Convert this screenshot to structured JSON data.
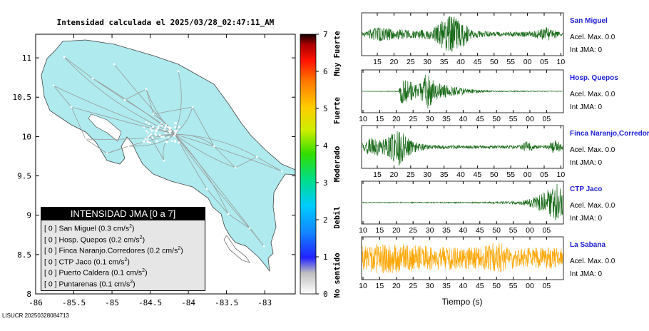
{
  "map": {
    "title": "Intensidad calculada el 2025/03/28_02:47:11_AM",
    "x_ticks": [
      "-86",
      "-85.5",
      "-85",
      "-84.5",
      "-84",
      "-83.5",
      "-83"
    ],
    "y_ticks": [
      "11",
      "10.5",
      "10",
      "9.5",
      "9",
      "8.5",
      "8"
    ],
    "x_tick_values": [
      -86,
      -85.5,
      -85,
      -84.5,
      -84,
      -83.5,
      -83
    ],
    "y_tick_values": [
      11,
      10.5,
      10,
      9.5,
      9,
      8.5,
      8
    ],
    "xlim": [
      -86,
      -82.6
    ],
    "ylim": [
      8,
      11.3
    ],
    "land_color": "#aeeaee",
    "road_color": "#9b9b9b"
  },
  "colorbar": {
    "ticks": [
      "0",
      "1",
      "2",
      "3",
      "4",
      "5",
      "6",
      "7"
    ],
    "labels": [
      "No sentido",
      "Debil",
      "Moderado",
      "Fuerte",
      "Muy Fuerte"
    ]
  },
  "legend": {
    "title": "INTENSIDAD JMA [0 a 7]",
    "rows": [
      {
        "bracket": "[ 0 ]",
        "name": "San Miguel",
        "value": "(0.3 cm/s",
        "exp": "2",
        "close": ")"
      },
      {
        "bracket": "[ 0 ]",
        "name": "Hosp. Quepos",
        "value": "(0.2 cm/s",
        "exp": "2",
        "close": ")"
      },
      {
        "bracket": "[ 0 ]",
        "name": "Finca Naranjo.Corredores",
        "value": "(0.2 cm/s",
        "exp": "2",
        "close": ")"
      },
      {
        "bracket": "[ 0 ]",
        "name": "CTP Jaco",
        "value": "(0.1 cm/s",
        "exp": "2",
        "close": ")"
      },
      {
        "bracket": "[ 0 ]",
        "name": "Puerto Caldera",
        "value": "(0.1 cm/s",
        "exp": "2",
        "close": ")"
      },
      {
        "bracket": "[ 0 ]",
        "name": "Puntarenas",
        "value": "(0.1 cm/s",
        "exp": "2",
        "close": ")"
      }
    ]
  },
  "footer_id": "LISUCR 20250328084713",
  "chart_data": [
    {
      "type": "line",
      "title": "Intensidad calculada el 2025/03/28_02:47:11_AM",
      "xlim": [
        -86,
        -82.6
      ],
      "ylim": [
        8,
        11.3
      ],
      "notes": "Map of Costa Rica with road network"
    },
    {
      "type": "heatmap",
      "colorbar_ticks": [
        0,
        1,
        2,
        3,
        4,
        5,
        6,
        7
      ],
      "colorbar_labels": [
        "No sentido",
        "Debil",
        "Moderado",
        "Fuerte",
        "Muy Fuerte"
      ]
    }
  ],
  "traces": {
    "xlabel": "Tiempo (s)",
    "panels": [
      {
        "station": "San Miguel",
        "acel": "Acel. Max. 0.0",
        "int": "Int JMA: 0",
        "ticks": [
          "15",
          "20",
          "25",
          "30",
          "35",
          "40",
          "45",
          "50",
          "55",
          "00",
          "05",
          "10"
        ],
        "color": "#1a6b1a",
        "envelope": [
          [
            0,
            0.1
          ],
          [
            0.08,
            0.4
          ],
          [
            0.15,
            0.3
          ],
          [
            0.25,
            0.2
          ],
          [
            0.35,
            0.25
          ],
          [
            0.42,
            0.95
          ],
          [
            0.48,
            0.85
          ],
          [
            0.55,
            0.2
          ],
          [
            0.7,
            0.1
          ],
          [
            0.85,
            0.15
          ],
          [
            0.92,
            0.35
          ],
          [
            1,
            0.1
          ]
        ]
      },
      {
        "station": "Hosp. Quepos",
        "acel": "Acel. Max. 0.0",
        "int": "Int JMA: 0",
        "ticks": [
          "10",
          "15",
          "20",
          "25",
          "30",
          "35",
          "40",
          "45",
          "50",
          "55",
          "00",
          "05"
        ],
        "color": "#1a6b1a",
        "envelope": [
          [
            0,
            0
          ],
          [
            0.18,
            0.02
          ],
          [
            0.2,
            0.9
          ],
          [
            0.24,
            0.5
          ],
          [
            0.28,
            0.3
          ],
          [
            0.32,
            0.95
          ],
          [
            0.36,
            0.5
          ],
          [
            0.45,
            0.25
          ],
          [
            0.55,
            0.1
          ],
          [
            0.65,
            0.03
          ],
          [
            1,
            0.01
          ]
        ]
      },
      {
        "station": "Finca Naranjo,Corredores",
        "acel": "Acel. Max. 0.0",
        "int": "Int JMA: 0",
        "ticks": [
          "15",
          "20",
          "25",
          "30",
          "35",
          "40",
          "45",
          "50",
          "55",
          "00",
          "05",
          "10"
        ],
        "color": "#1a6b1a",
        "envelope": [
          [
            0,
            0.2
          ],
          [
            0.05,
            0.5
          ],
          [
            0.12,
            0.4
          ],
          [
            0.18,
            1.0
          ],
          [
            0.22,
            0.5
          ],
          [
            0.28,
            0.2
          ],
          [
            0.35,
            0.1
          ],
          [
            0.78,
            0.08
          ],
          [
            0.82,
            0.3
          ],
          [
            0.86,
            0.1
          ],
          [
            0.92,
            0.1
          ],
          [
            0.96,
            0.4
          ],
          [
            1,
            0.1
          ]
        ]
      },
      {
        "station": "CTP Jaco",
        "acel": "Acel. Max. 0.0",
        "int": "Int JMA: 0",
        "ticks": [
          "10",
          "15",
          "20",
          "25",
          "30",
          "35",
          "40",
          "45",
          "50",
          "55",
          "00",
          "05"
        ],
        "color": "#1a6b1a",
        "envelope": [
          [
            0,
            0.02
          ],
          [
            0.6,
            0.03
          ],
          [
            0.72,
            0.06
          ],
          [
            0.8,
            0.12
          ],
          [
            0.86,
            0.3
          ],
          [
            0.92,
            0.6
          ],
          [
            0.97,
            0.95
          ],
          [
            1,
            0.8
          ]
        ]
      },
      {
        "station": "La Sabana",
        "acel": "Acel. Max. 0.0",
        "int": "Int JMA: 0",
        "ticks": [
          "10",
          "15",
          "20",
          "25",
          "30",
          "35",
          "40",
          "45",
          "50",
          "55",
          "00",
          "05"
        ],
        "color": "#ffa500",
        "envelope": [
          [
            0,
            0.6
          ],
          [
            0.1,
            0.8
          ],
          [
            0.2,
            0.7
          ],
          [
            0.3,
            0.65
          ],
          [
            0.4,
            0.6
          ],
          [
            0.5,
            0.55
          ],
          [
            0.6,
            0.55
          ],
          [
            0.68,
            0.9
          ],
          [
            0.72,
            0.6
          ],
          [
            0.8,
            0.5
          ],
          [
            0.9,
            0.55
          ],
          [
            1,
            0.5
          ]
        ]
      }
    ]
  }
}
